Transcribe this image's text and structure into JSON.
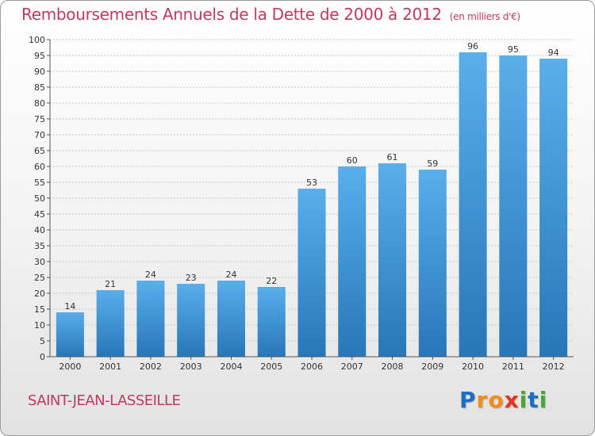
{
  "title": "Remboursements Annuels de la Dette de 2000 à 2012",
  "unit_note": "(en milliers d'€)",
  "commune": "SAINT-JEAN-LASSEILLE",
  "logo": {
    "letters": [
      "P",
      "r",
      "o",
      "x",
      "i",
      "t",
      "i"
    ],
    "colors": [
      "#1f6fc0",
      "#f28c1a",
      "#f28c1a",
      "#e8351e",
      "#4aa832",
      "#1f6fc0",
      "#4aa832"
    ]
  },
  "colors": {
    "bar_top": "#5aaeea",
    "bar_bottom": "#2677b8",
    "title": "#c0395e",
    "grid": "#c8c8c8"
  },
  "chart_data": {
    "type": "bar",
    "title": "Remboursements Annuels de la Dette de 2000 à 2012",
    "xlabel": "",
    "ylabel": "",
    "categories": [
      "2000",
      "2001",
      "2002",
      "2003",
      "2004",
      "2005",
      "2006",
      "2007",
      "2008",
      "2009",
      "2010",
      "2011",
      "2012"
    ],
    "values": [
      14,
      21,
      24,
      23,
      24,
      22,
      53,
      60,
      61,
      59,
      96,
      95,
      94
    ],
    "ylim": [
      0,
      100
    ],
    "ytick_step": 5,
    "grid": true
  }
}
